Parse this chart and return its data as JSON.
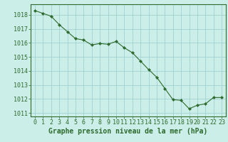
{
  "x": [
    0,
    1,
    2,
    3,
    4,
    5,
    6,
    7,
    8,
    9,
    10,
    11,
    12,
    13,
    14,
    15,
    16,
    17,
    18,
    19,
    20,
    21,
    22,
    23
  ],
  "y": [
    1018.3,
    1018.1,
    1017.9,
    1017.3,
    1016.8,
    1016.3,
    1016.2,
    1015.85,
    1015.95,
    1015.9,
    1016.1,
    1015.65,
    1015.3,
    1014.7,
    1014.1,
    1013.55,
    1012.75,
    1011.95,
    1011.9,
    1011.3,
    1011.55,
    1011.65,
    1012.1,
    1012.1
  ],
  "xlim": [
    -0.5,
    23.5
  ],
  "ylim": [
    1010.75,
    1018.75
  ],
  "yticks": [
    1011,
    1012,
    1013,
    1014,
    1015,
    1016,
    1017,
    1018
  ],
  "xticks": [
    0,
    1,
    2,
    3,
    4,
    5,
    6,
    7,
    8,
    9,
    10,
    11,
    12,
    13,
    14,
    15,
    16,
    17,
    18,
    19,
    20,
    21,
    22,
    23
  ],
  "line_color": "#2d6a2d",
  "marker_color": "#2d6a2d",
  "bg_color": "#cceee8",
  "grid_color": "#99cccc",
  "xlabel": "Graphe pression niveau de la mer (hPa)",
  "xlabel_color": "#2d6a2d",
  "tick_color": "#2d6a2d",
  "spine_color": "#2d6a2d",
  "xlabel_fontsize": 7.0,
  "tick_fontsize": 6.0
}
